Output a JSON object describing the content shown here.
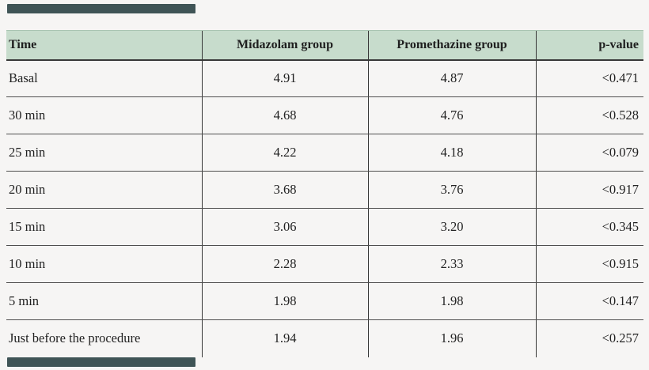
{
  "colors": {
    "page-bg": "#f6f5f4",
    "header-bg": "#c7dccc",
    "grid-line": "#4f4f4f",
    "divider-line": "#383838",
    "text": "#1f1f1f",
    "redaction-bar": "#3f5456"
  },
  "table": {
    "columns": [
      {
        "label": "Time",
        "align": "left"
      },
      {
        "label": "Midazolam group",
        "align": "center"
      },
      {
        "label": "Promethazine group",
        "align": "center"
      },
      {
        "label": "p-value",
        "align": "right"
      }
    ],
    "rows": [
      [
        "Basal",
        "4.91",
        "4.87",
        "<0.471"
      ],
      [
        "30 min",
        "4.68",
        "4.76",
        "<0.528"
      ],
      [
        "25 min",
        "4.22",
        "4.18",
        "<0.079"
      ],
      [
        "20 min",
        "3.68",
        "3.76",
        "<0.917"
      ],
      [
        "15 min",
        "3.06",
        "3.20",
        "<0.345"
      ],
      [
        "10 min",
        "2.28",
        "2.33",
        "<0.915"
      ],
      [
        "5 min",
        "1.98",
        "1.98",
        "<0.147"
      ],
      [
        "Just before the procedure",
        "1.94",
        "1.96",
        "<0.257"
      ]
    ]
  },
  "chart_data": {
    "type": "table",
    "columns": [
      "Time",
      "Midazolam group",
      "Promethazine group",
      "p-value"
    ],
    "rows": [
      [
        "Basal",
        4.91,
        4.87,
        "<0.471"
      ],
      [
        "30 min",
        4.68,
        4.76,
        "<0.528"
      ],
      [
        "25 min",
        4.22,
        4.18,
        "<0.079"
      ],
      [
        "20 min",
        3.68,
        3.76,
        "<0.917"
      ],
      [
        "15 min",
        3.06,
        3.2,
        "<0.345"
      ],
      [
        "10 min",
        2.28,
        2.33,
        "<0.915"
      ],
      [
        "5 min",
        1.98,
        1.98,
        "<0.147"
      ],
      [
        "Just before the procedure",
        1.94,
        1.96,
        "<0.257"
      ]
    ]
  }
}
